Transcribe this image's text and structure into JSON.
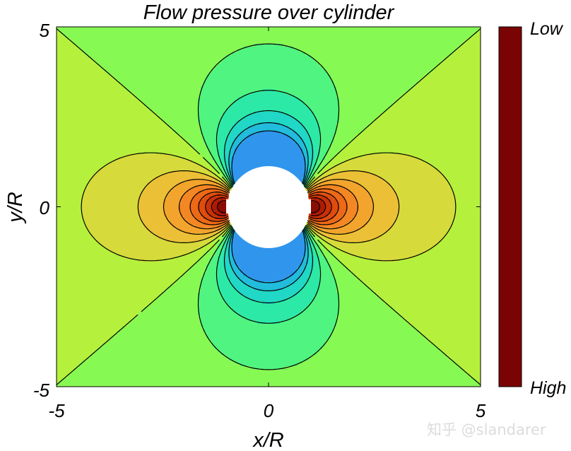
{
  "chart_data": {
    "type": "contour",
    "title": "Flow pressure over cylinder",
    "xlabel": "x/R",
    "ylabel": "y/R",
    "xlim": [
      -5,
      5
    ],
    "ylim": [
      -5,
      5
    ],
    "x_ticks": [
      "-5",
      "0",
      "5"
    ],
    "y_ticks": [
      "5",
      "0",
      "-5"
    ],
    "cylinder_radius": 1,
    "grid": false,
    "colorbar": {
      "position": "right",
      "top_label": "Low",
      "bottom_label": "High",
      "colormap": "turbo"
    },
    "field": {
      "description_formula": "Cp = 2*R^2*cos(2*theta)/r^2 - R^4/r^4",
      "levels": [
        -0.5,
        -0.4,
        -0.3,
        -0.2,
        -0.1,
        0,
        0.1,
        0.2,
        0.3,
        0.4,
        0.5,
        0.6,
        0.7,
        0.8,
        0.9
      ],
      "cmin": -1.0,
      "cmax": 1.0
    }
  },
  "watermark": "知乎 @slandarer",
  "colors": {
    "background": "#e8711e",
    "contour_line": "#000000",
    "cylinder": "#ffffff"
  }
}
